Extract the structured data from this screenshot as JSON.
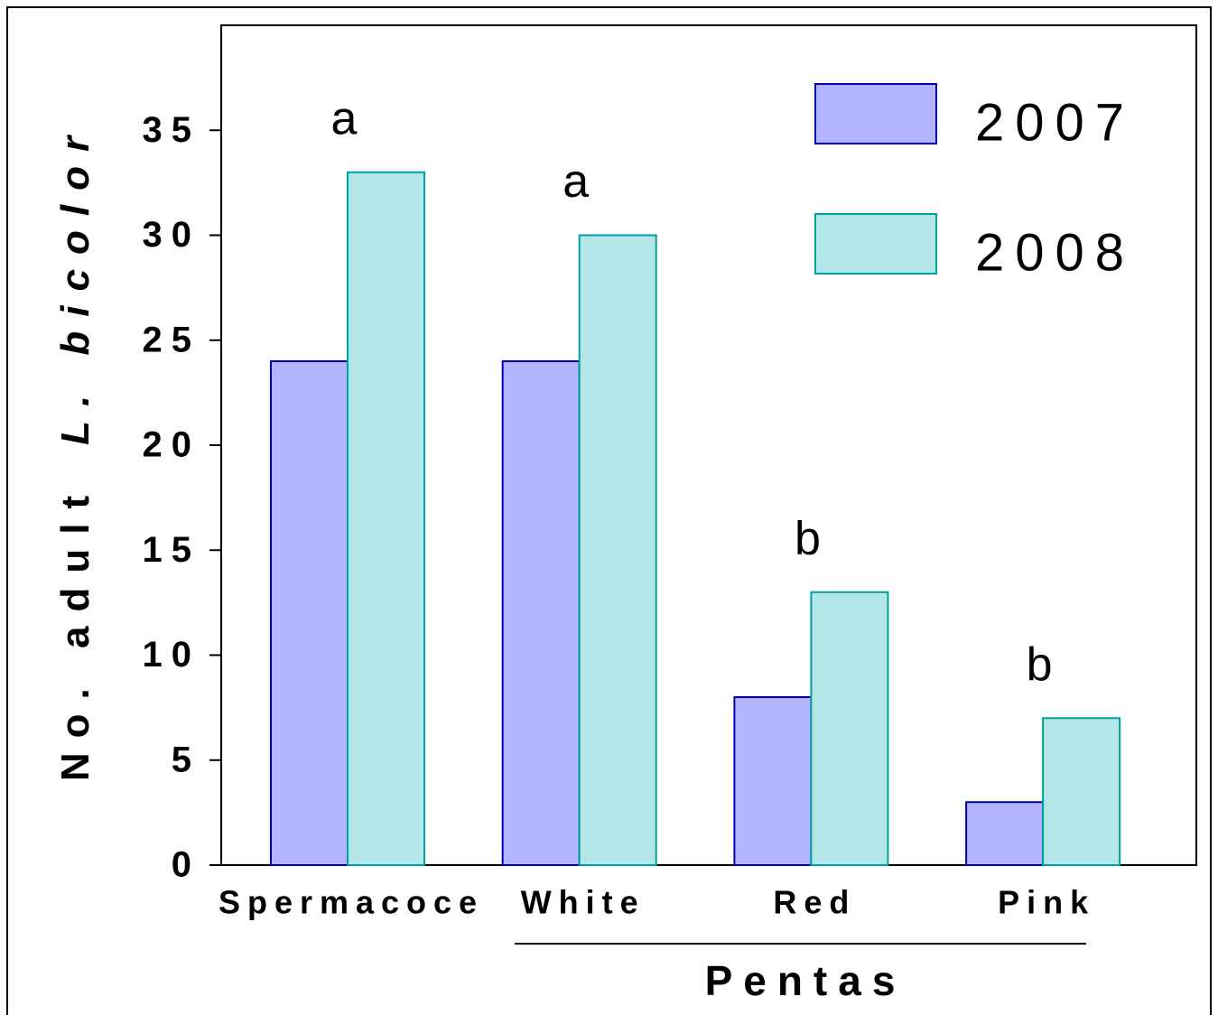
{
  "chart_data": {
    "type": "bar",
    "ylabel": {
      "text": "No. adult",
      "italic": "L. bicolor"
    },
    "categories": [
      "Spermacoce",
      "White",
      "Red",
      "Pink"
    ],
    "category_group": "Pentas",
    "group_labels": [
      "a",
      "a",
      "b",
      "b"
    ],
    "series": [
      {
        "name": "2007",
        "color": "#b3b3ff",
        "edge": "#0000b3",
        "values": [
          24,
          24,
          8,
          3
        ]
      },
      {
        "name": "2008",
        "color": "#b3e6e6",
        "edge": "#00a0a0",
        "values": [
          33,
          30,
          13,
          7
        ]
      }
    ],
    "ylim": [
      0,
      40
    ],
    "yticks": [
      0,
      5,
      10,
      15,
      20,
      25,
      30,
      35
    ],
    "grid": false,
    "legend": "upper right"
  }
}
